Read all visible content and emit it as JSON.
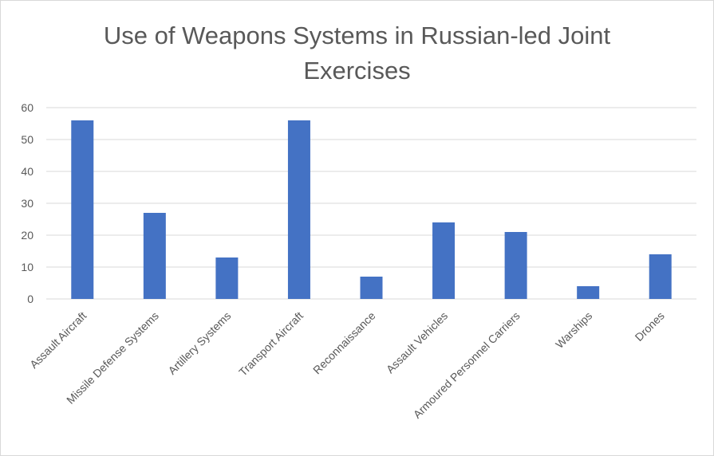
{
  "chart_data": {
    "type": "bar",
    "title_line1": "Use of Weapons Systems in Russian-led Joint",
    "title_line2": "Exercises",
    "categories": [
      "Assault Aircraft",
      "Missile Defense Systems",
      "Artillery Systems",
      "Transport Aircraft",
      "Reconnaissance",
      "Assault Vehicles",
      "Armoured Personnel Carriers",
      "Warships",
      "Drones"
    ],
    "values": [
      56,
      27,
      13,
      56,
      7,
      24,
      21,
      4,
      14
    ],
    "ylim": [
      0,
      60
    ],
    "yticks": [
      0,
      10,
      20,
      30,
      40,
      50,
      60
    ],
    "grid": true,
    "legend": "none",
    "colors": {
      "bar": "#4472c4",
      "grid": "#d9d9d9",
      "text": "#595959"
    }
  }
}
